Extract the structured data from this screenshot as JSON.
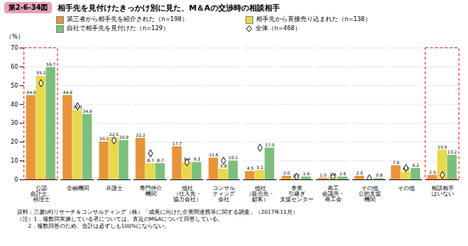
{
  "chart_data": {
    "type": "bar",
    "title": "相手先を見付けたきっかけ別に見た、M＆Aの交渉時の相談相手",
    "title_label": "第2-6-34図",
    "categories": [
      "公認\n会計士、\n税理士",
      "金融機関",
      "弁護士",
      "専門仲介\n機関",
      "他社\n（仕入先・\n協力会社）",
      "コンサル\nティング\n会社",
      "他社\n（販売先・\n顧客）",
      "事業\n引継ぎ\n支援センター",
      "商工\n会議所・\n商工会",
      "その他\n公的支援\n機関",
      "その他",
      "相談相手\nはいない"
    ],
    "series": [
      {
        "name": "第三者から相手先を紹介された（n=198）",
        "color": "#E8943A",
        "values": [
          44.9,
          44.9,
          20.2,
          22.2,
          17.7,
          11.6,
          4.5,
          2.0,
          1.0,
          2.0,
          7.6,
          2.5
        ],
        "value_labels": [
          "44.9",
          "44.9",
          "20.2",
          "22.2",
          "17.7",
          "11.6",
          "4.5",
          "2.0",
          "1.0",
          "2.0",
          "7.6",
          "2.5"
        ]
      },
      {
        "name": "相手先から直接売り込まれた（n=138）",
        "color": "#E8D84A",
        "values": [
          55.1,
          37.0,
          22.5,
          8.7,
          9.4,
          5.8,
          5.1,
          0.7,
          1.4,
          0.0,
          4.3,
          15.9
        ],
        "value_labels": [
          "55.1",
          "37.0",
          "22.5",
          "8.7",
          "9.4",
          "5.8",
          "5.1",
          "0.7",
          "1.4",
          null,
          "4.3",
          "15.9"
        ]
      },
      {
        "name": "自社で相手先を見付けた（n=129）",
        "color": "#7CBF7C",
        "values": [
          59.7,
          34.9,
          20.9,
          8.7,
          9.3,
          10.1,
          17.0,
          1.6,
          1.6,
          0.8,
          6.2,
          13.2
        ],
        "value_labels": [
          "59.7",
          "34.9",
          "20.9",
          "8.7",
          "9.3",
          "10.1",
          "17.0",
          "1.6",
          "1.6",
          "0.8",
          "6.2",
          "13.2"
        ]
      },
      {
        "name": "全体（n=468）",
        "type": "scatter",
        "marker": "diamond",
        "values": [
          51.3,
          39.0,
          20.9,
          14.0,
          9.3,
          10.1,
          17.0,
          1.6,
          1.6,
          0.8,
          6.2,
          2.5
        ]
      }
    ],
    "ylabel": "（%）",
    "ylim": [
      0,
      70
    ],
    "yticks": [
      0,
      10,
      20,
      30,
      40,
      50,
      60,
      70
    ],
    "grid": true,
    "data_labels": true,
    "notes": [
      "資料：三菱UFJリサーチ＆コンサルティング（株）「成長に向けた企業間連携等に関する調査」（2017年11月）",
      "（注）1．複数回実施している者については、直近のM&Aについて回答している。",
      "　　2．複数回答のため、合計は必ずしも100%にならない。"
    ]
  }
}
